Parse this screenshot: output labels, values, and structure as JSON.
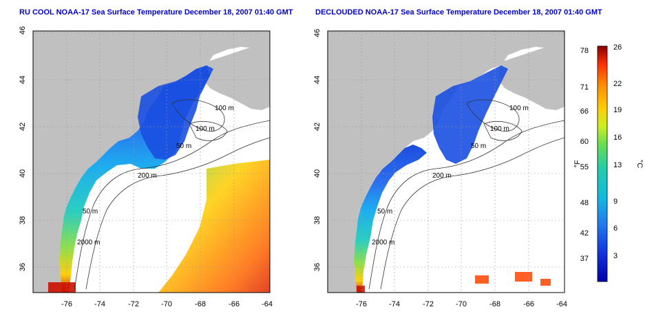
{
  "maps": [
    {
      "title": "RU COOL NOAA-17 Sea Surface Temperature December 18, 2007 01:40 GMT",
      "lat_ticks": [
        "46",
        "44",
        "42",
        "40",
        "38",
        "36"
      ],
      "lon_ticks": [
        "-76",
        "-74",
        "-72",
        "-70",
        "-68",
        "-66",
        "-64"
      ],
      "contour_labels": [
        "100 m",
        "100 m",
        "50 m",
        "200 m",
        "50 m",
        "2000 m"
      ]
    },
    {
      "title": "DECLOUDED NOAA-17 Sea Surface Temperature December 18, 2007 01:40 GMT",
      "lat_ticks": [
        "46",
        "44",
        "42",
        "40",
        "38",
        "36"
      ],
      "lon_ticks": [
        "-76",
        "-74",
        "-72",
        "-70",
        "-68",
        "-66",
        "-64"
      ],
      "contour_labels": [
        "100 m",
        "100 m",
        "50 m",
        "200 m",
        "50 m",
        "2000 m"
      ]
    }
  ],
  "colorbar": {
    "f_ticks": [
      "78",
      "71",
      "66",
      "60",
      "55",
      "48",
      "42",
      "37"
    ],
    "c_ticks": [
      "26",
      "22",
      "19",
      "16",
      "13",
      "9",
      "6",
      "3"
    ],
    "f_label": "°F",
    "c_label": "°C",
    "colors": [
      "#8b0000",
      "#cc1100",
      "#ff3300",
      "#ff8800",
      "#ffcc00",
      "#ccee22",
      "#66dd55",
      "#22ccaa",
      "#11bbdd",
      "#2299ee",
      "#2266ee",
      "#1133dd",
      "#0000aa"
    ]
  },
  "land_color": "#c0c0c0"
}
